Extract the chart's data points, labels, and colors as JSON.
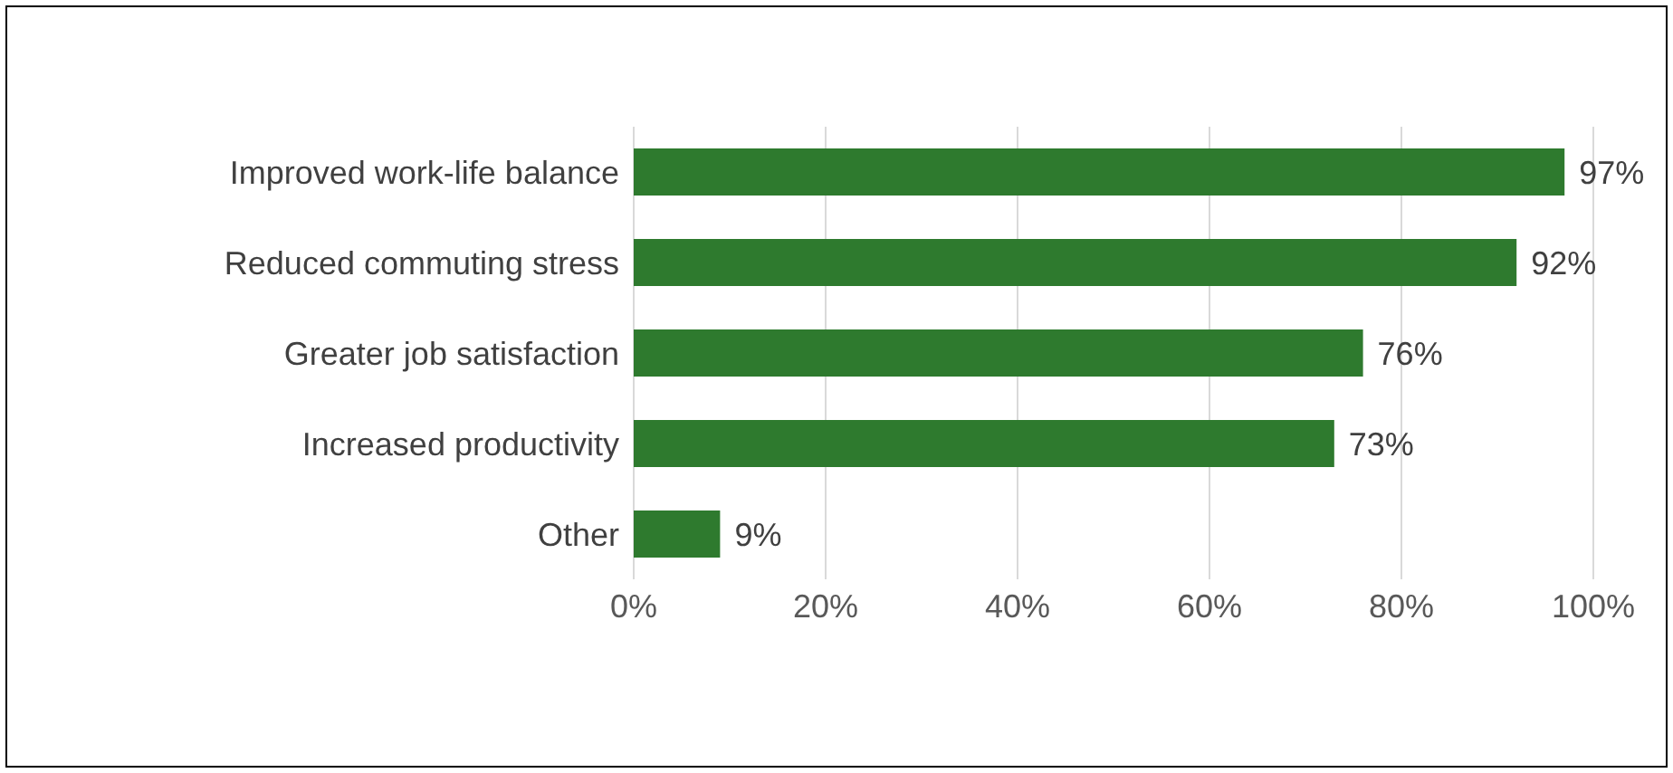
{
  "chart_data": {
    "type": "bar",
    "orientation": "horizontal",
    "categories": [
      "Improved work-life balance",
      "Reduced commuting stress",
      "Greater job satisfaction",
      "Increased productivity",
      "Other"
    ],
    "values": [
      97,
      92,
      76,
      73,
      9
    ],
    "value_labels": [
      "97%",
      "92%",
      "76%",
      "73%",
      "9%"
    ],
    "color": "#2e7a2e",
    "xlim": [
      0,
      100
    ],
    "xticks": [
      {
        "value": 0,
        "label": "0%"
      },
      {
        "value": 20,
        "label": "20%"
      },
      {
        "value": 40,
        "label": "40%"
      },
      {
        "value": 60,
        "label": "60%"
      },
      {
        "value": 80,
        "label": "80%"
      },
      {
        "value": 100,
        "label": "100%"
      }
    ],
    "grid": "x",
    "legend": false
  }
}
